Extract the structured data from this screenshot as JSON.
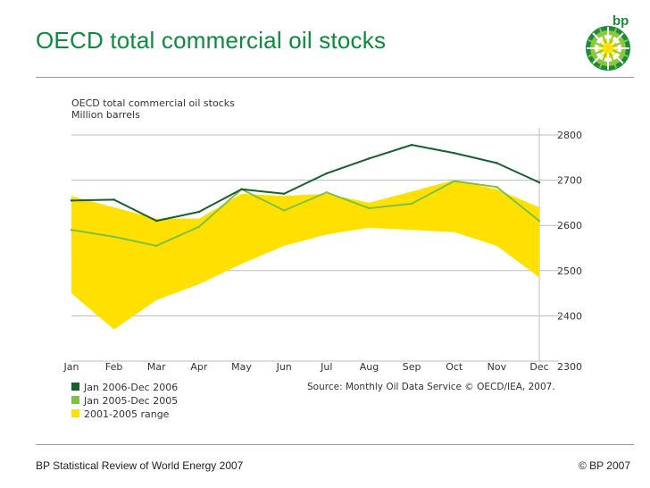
{
  "slide": {
    "title": "OECD total commercial oil stocks",
    "footer_left": "BP Statistical Review of World Energy 2007",
    "footer_right": "© BP 2007",
    "logo_text": "bp"
  },
  "colors": {
    "title": "#0f8a3c",
    "series_2006": "#15602b",
    "series_2005": "#7dc242",
    "range_fill": "#ffe000",
    "grid": "#bdbdbd"
  },
  "chart_data": {
    "type": "line",
    "title": "OECD total commercial oil stocks",
    "subtitle": "Million barrels",
    "x": [
      "Jan",
      "Feb",
      "Mar",
      "Apr",
      "May",
      "Jun",
      "Jul",
      "Aug",
      "Sep",
      "Oct",
      "Nov",
      "Dec"
    ],
    "y_axis_position": "right",
    "ylim": [
      2300,
      2800
    ],
    "yticks": [
      2300,
      2400,
      2500,
      2600,
      2700,
      2800
    ],
    "grid": true,
    "range": {
      "name": "2001-2005 range",
      "high": [
        2665,
        2640,
        2615,
        2615,
        2670,
        2665,
        2670,
        2650,
        2675,
        2700,
        2680,
        2640
      ],
      "low": [
        2450,
        2370,
        2435,
        2470,
        2515,
        2555,
        2580,
        2595,
        2590,
        2585,
        2555,
        2485
      ]
    },
    "series": [
      {
        "name": "Jan 2006-Dec 2006",
        "values": [
          2655,
          2657,
          2610,
          2630,
          2680,
          2670,
          2715,
          2748,
          2778,
          2760,
          2738,
          2695
        ]
      },
      {
        "name": "Jan 2005-Dec 2005",
        "values": [
          2590,
          2575,
          2555,
          2597,
          2680,
          2633,
          2673,
          2638,
          2648,
          2698,
          2685,
          2610
        ]
      }
    ],
    "legend": [
      "Jan 2006-Dec 2006",
      "Jan 2005-Dec 2005",
      "2001-2005 range"
    ],
    "legend_position": "bottom-left",
    "source": "Source: Monthly Oil Data Service © OECD/IEA, 2007."
  }
}
